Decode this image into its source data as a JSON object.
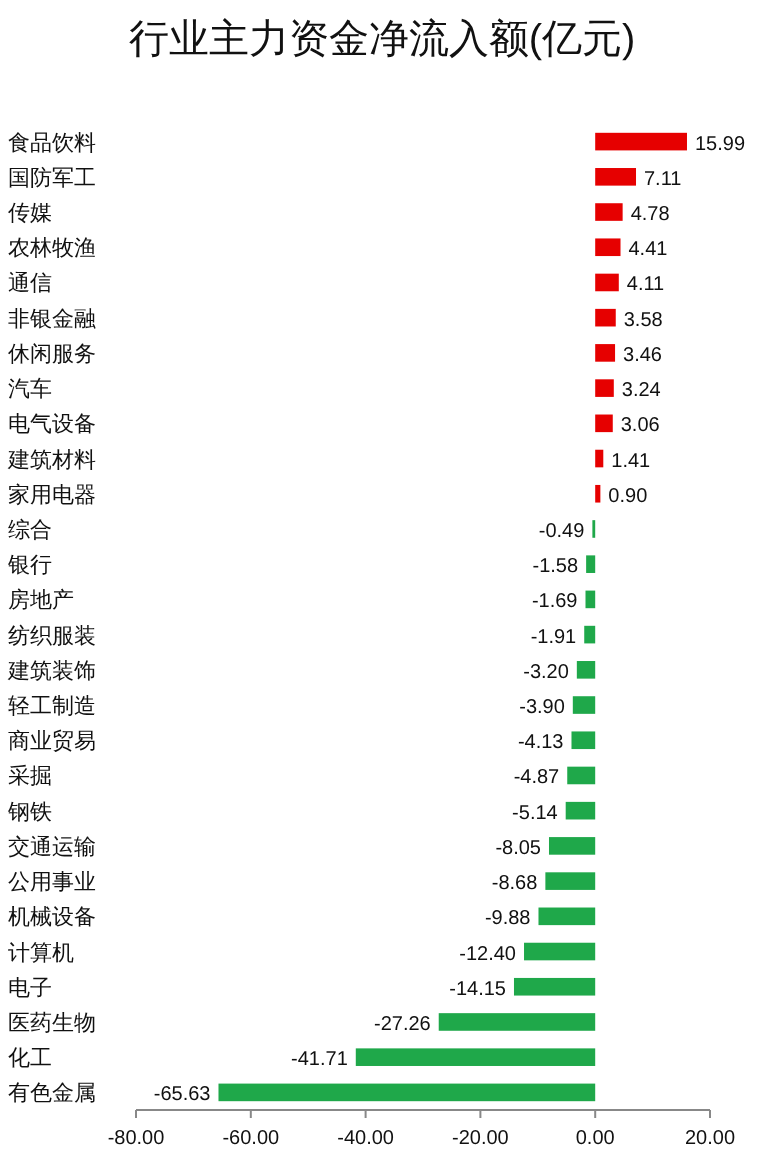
{
  "chart_data": {
    "type": "bar",
    "orientation": "horizontal",
    "title": "行业主力资金净流入额(亿元)",
    "categories": [
      "食品饮料",
      "国防军工",
      "传媒",
      "农林牧渔",
      "通信",
      "非银金融",
      "休闲服务",
      "汽车",
      "电气设备",
      "建筑材料",
      "家用电器",
      "综合",
      "银行",
      "房地产",
      "纺织服装",
      "建筑装饰",
      "轻工制造",
      "商业贸易",
      "采掘",
      "钢铁",
      "交通运输",
      "公用事业",
      "机械设备",
      "计算机",
      "电子",
      "医药生物",
      "化工",
      "有色金属"
    ],
    "values": [
      15.99,
      7.11,
      4.78,
      4.41,
      4.11,
      3.58,
      3.46,
      3.24,
      3.06,
      1.41,
      0.9,
      -0.49,
      -1.58,
      -1.69,
      -1.91,
      -3.2,
      -3.9,
      -4.13,
      -4.87,
      -5.14,
      -8.05,
      -8.68,
      -9.88,
      -12.4,
      -14.15,
      -27.26,
      -41.71,
      -65.63
    ],
    "value_labels": [
      "15.99",
      "7.11",
      "4.78",
      "4.41",
      "4.11",
      "3.58",
      "3.46",
      "3.24",
      "3.06",
      "1.41",
      "0.90",
      "-0.49",
      "-1.58",
      "-1.69",
      "-1.91",
      "-3.20",
      "-3.90",
      "-4.13",
      "-4.87",
      "-5.14",
      "-8.05",
      "-8.68",
      "-9.88",
      "-12.40",
      "-14.15",
      "-27.26",
      "-41.71",
      "-65.63"
    ],
    "colors": [
      "#e60000",
      "#e60000",
      "#e60000",
      "#e60000",
      "#e60000",
      "#e60000",
      "#e60000",
      "#e60000",
      "#e60000",
      "#e60000",
      "#e60000",
      "#1fa84a",
      "#1fa84a",
      "#1fa84a",
      "#1fa84a",
      "#1fa84a",
      "#1fa84a",
      "#1fa84a",
      "#1fa84a",
      "#1fa84a",
      "#1fa84a",
      "#1fa84a",
      "#1fa84a",
      "#1fa84a",
      "#1fa84a",
      "#1fa84a",
      "#1fa84a",
      "#1fa84a"
    ],
    "xlim": [
      -80,
      20
    ],
    "xticks": [
      {
        "value": -80,
        "label": "-80.00"
      },
      {
        "value": -60,
        "label": "-60.00"
      },
      {
        "value": -40,
        "label": "-40.00"
      },
      {
        "value": -20,
        "label": "-20.00"
      },
      {
        "value": 0,
        "label": "0.00"
      },
      {
        "value": 20,
        "label": "20.00"
      }
    ]
  }
}
